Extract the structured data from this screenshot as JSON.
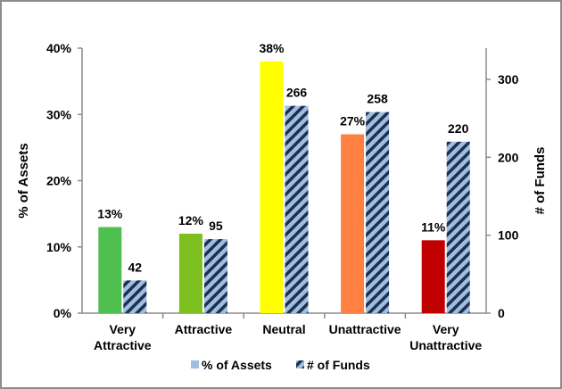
{
  "chart_data": {
    "type": "bar",
    "categories": [
      [
        "Very",
        "Attractive"
      ],
      [
        "Attractive"
      ],
      [
        "Neutral"
      ],
      [
        "Unattractive"
      ],
      [
        "Very",
        "Unattractive"
      ]
    ],
    "series": [
      {
        "name": "% of Assets",
        "axis": "left",
        "values": [
          13,
          12,
          38,
          27,
          11
        ],
        "labels": [
          "13%",
          "12%",
          "38%",
          "27%",
          "11%"
        ],
        "colors": [
          "#4fc04f",
          "#7cbf1e",
          "#ffff00",
          "#ff8040",
          "#c00000"
        ]
      },
      {
        "name": "# of Funds",
        "axis": "right",
        "values": [
          42,
          95,
          266,
          258,
          220
        ],
        "labels": [
          "42",
          "95",
          "266",
          "258",
          "220"
        ],
        "fill": "hatched",
        "colors": [
          "#9fbfe0",
          "#1f2f4f"
        ]
      }
    ],
    "ylabel": "% of Assets",
    "y2label": "# of Funds",
    "ylim": [
      0,
      40
    ],
    "y2lim": [
      0,
      340
    ],
    "yticks": [
      "0%",
      "10%",
      "20%",
      "30%",
      "40%"
    ],
    "y2ticks": [
      "0",
      "100",
      "200",
      "300"
    ],
    "grid": false,
    "legend": "bottom"
  }
}
